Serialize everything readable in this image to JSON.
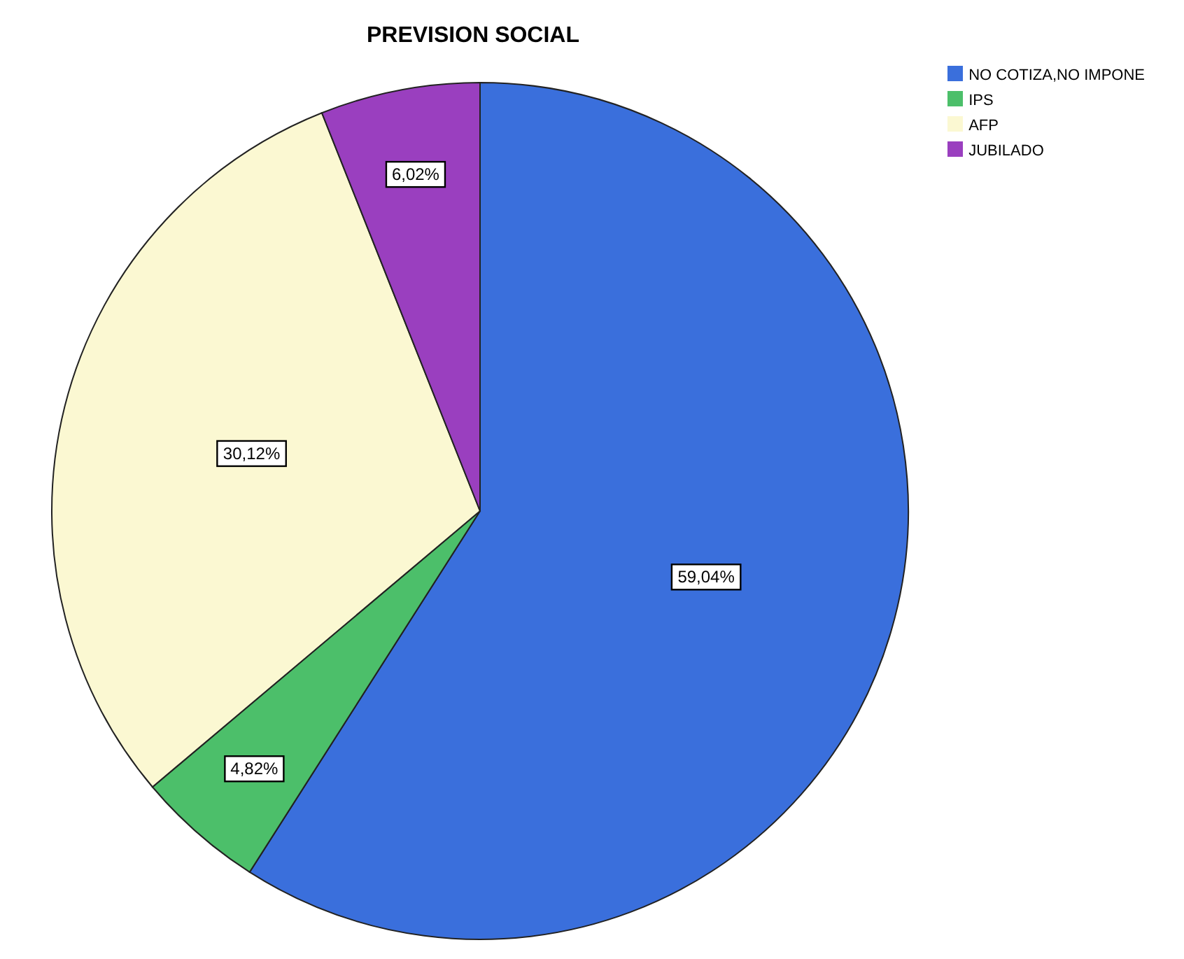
{
  "chart_data": {
    "type": "pie",
    "title": "PREVISION SOCIAL",
    "categories": [
      "NO COTIZA,NO IMPONE",
      "IPS",
      "AFP",
      "JUBILADO"
    ],
    "values": [
      59.04,
      4.82,
      30.12,
      6.02
    ],
    "value_labels": [
      "59,04%",
      "4,82%",
      "30,12%",
      "6,02%"
    ],
    "colors": [
      "#3a6fdc",
      "#4cbf6a",
      "#fbf8d2",
      "#9a3fbf"
    ],
    "legend": "top right"
  }
}
